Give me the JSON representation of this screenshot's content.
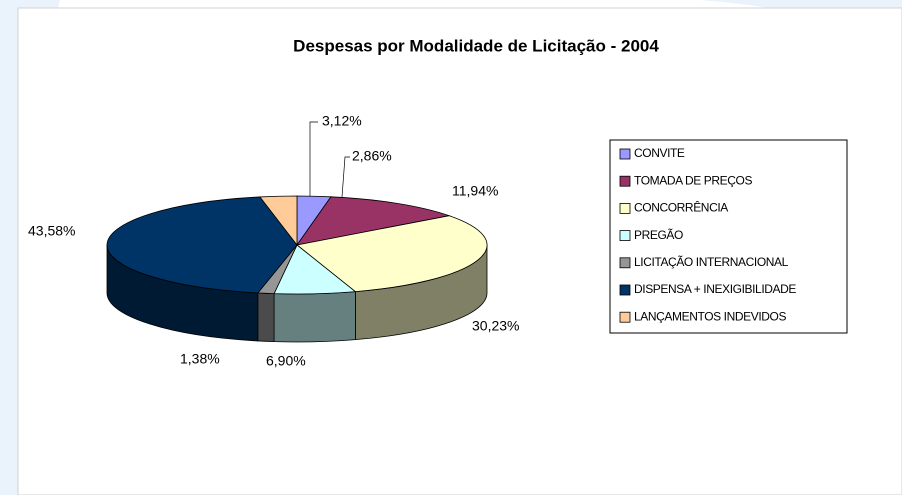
{
  "chart_data": {
    "type": "pie",
    "title": "Despesas por Modalidade de Licitação - 2004",
    "categories": [
      "CONVITE",
      "TOMADA DE PREÇOS",
      "CONCORRÊNCIA",
      "PREGÃO",
      "LICITAÇÃO INTERNACIONAL",
      "DISPENSA + INEXIGIBILIDADE",
      "LANÇAMENTOS INDEVIDOS"
    ],
    "values": [
      2.86,
      11.94,
      30.23,
      6.9,
      1.38,
      43.58,
      3.12
    ],
    "value_labels": [
      "2,86%",
      "11,94%",
      "30,23%",
      "6,90%",
      "1,38%",
      "43,58%",
      "3,12%"
    ],
    "colors": [
      "#9999ff",
      "#993366",
      "#ffffcc",
      "#ccffff",
      "#969696",
      "#003366",
      "#ffcc99"
    ],
    "legend": "right"
  }
}
